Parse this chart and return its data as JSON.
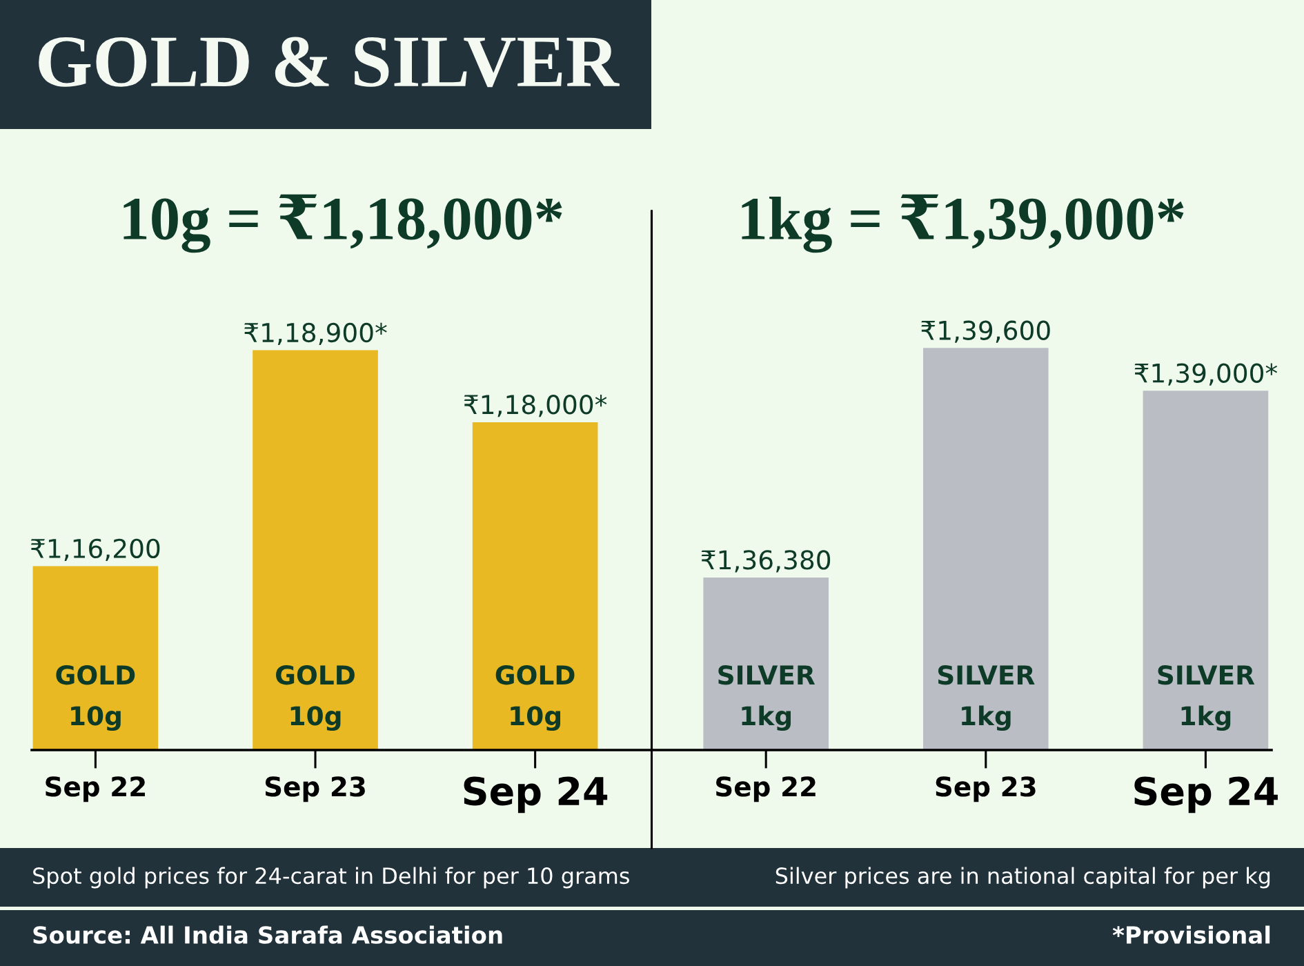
{
  "chart_data": [
    {
      "type": "bar",
      "title": "GOLD & SILVER",
      "subtitle": "10g = ₹1,18,000*",
      "categories": [
        "Sep 22",
        "Sep 23",
        "Sep 24"
      ],
      "series": [
        {
          "name": "GOLD\n10g",
          "color": "#e8b923",
          "values": [
            116200,
            118900,
            118000
          ],
          "value_labels": [
            "₹1,16,200",
            "₹1,18,900*",
            "₹1,18,000*"
          ]
        }
      ],
      "ylim": [
        113900,
        120640
      ],
      "tick_labels": "x",
      "annotations": [
        "Spot gold prices for 24-carat in Delhi for per 10 grams",
        "Source: All India Sarafa Association"
      ]
    },
    {
      "type": "bar",
      "subtitle": "1kg = ₹1,39,000*",
      "categories": [
        "Sep 22",
        "Sep 23",
        "Sep 24"
      ],
      "series": [
        {
          "name": "SILVER\n1kg",
          "color": "#babec4",
          "values": [
            136380,
            139600,
            139000
          ],
          "value_labels": [
            "₹1,36,380",
            "₹1,39,600",
            "₹1,39,000*"
          ]
        }
      ],
      "ylim": [
        133960,
        141520
      ],
      "tick_labels": "x",
      "annotations": [
        "Silver prices are in national capital for per kg",
        "*Provisional"
      ]
    }
  ]
}
